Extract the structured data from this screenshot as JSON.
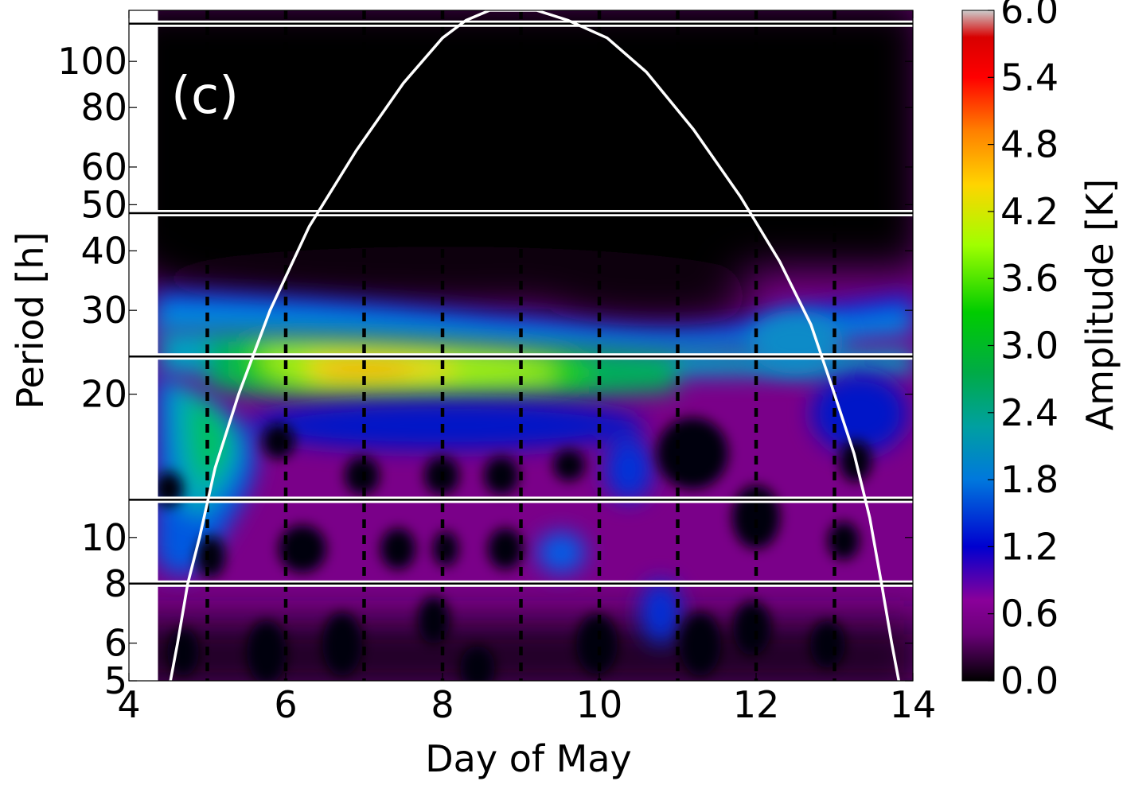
{
  "chart_data": {
    "type": "heatmap",
    "panel_label": "(c)",
    "xlabel": "Day of May",
    "ylabel": "Period [h]",
    "xlim": [
      4,
      14
    ],
    "ylim": [
      5,
      128
    ],
    "y_scale": "log",
    "x_ticks": [
      4,
      6,
      8,
      10,
      12,
      14
    ],
    "y_ticks": [
      5,
      6,
      8,
      10,
      20,
      30,
      40,
      50,
      60,
      80,
      100
    ],
    "data_start_day": 4.37,
    "day_marker_lines": [
      5,
      6,
      7,
      8,
      9,
      10,
      11,
      12,
      13
    ],
    "period_band_boundaries": [
      8,
      12,
      24,
      48,
      120
    ],
    "cone_of_influence": {
      "x": [
        4.53,
        4.62,
        4.75,
        4.9,
        5.1,
        5.4,
        5.8,
        6.3,
        6.9,
        7.5,
        8.0,
        8.3,
        8.6,
        8.9,
        9.2,
        9.6,
        10.1,
        10.6,
        11.2,
        11.8,
        12.3,
        12.7,
        13.0,
        13.25,
        13.45,
        13.6,
        13.73,
        13.82
      ],
      "y": [
        5,
        6,
        8,
        10,
        14,
        20,
        30,
        45,
        65,
        90,
        112,
        122,
        128,
        128,
        128,
        122,
        112,
        95,
        72,
        52,
        38,
        28,
        20,
        15,
        11,
        8,
        6,
        5
      ]
    },
    "amplitude_regions": [
      {
        "x": 7.0,
        "period": 22.5,
        "amplitude": 4.6
      },
      {
        "x": 7.8,
        "period": 22.3,
        "amplitude": 4.2
      },
      {
        "x": 6.3,
        "period": 22.8,
        "amplitude": 3.4
      },
      {
        "x": 8.8,
        "period": 22.0,
        "amplitude": 3.5
      },
      {
        "x": 9.6,
        "period": 21.8,
        "amplitude": 2.7
      },
      {
        "x": 6.4,
        "period": 25.8,
        "amplitude": 3.0
      },
      {
        "x": 7.8,
        "period": 25.5,
        "amplitude": 2.6
      },
      {
        "x": 5.7,
        "period": 20.0,
        "amplitude": 2.6
      },
      {
        "x": 5.5,
        "period": 14.5,
        "amplitude": 2.0
      },
      {
        "x": 12.6,
        "period": 22.0,
        "amplitude": 1.9
      },
      {
        "x": 4.6,
        "period": 30.0,
        "amplitude": 1.8
      },
      {
        "x": 13.7,
        "period": 29.0,
        "amplitude": 1.6
      },
      {
        "x": 9.6,
        "period": 9.5,
        "amplitude": 1.3
      }
    ],
    "colorbar": {
      "label": "Amplitude [K]",
      "ticks": [
        "0.0",
        "0.6",
        "1.2",
        "1.8",
        "2.4",
        "3.0",
        "3.6",
        "4.2",
        "4.8",
        "5.4",
        "6.0"
      ],
      "min": 0.0,
      "max": 6.0,
      "colormap": "nipy_spectral",
      "colors": [
        "#000000",
        "#7a0089",
        "#8a009a",
        "#0000d0",
        "#0078dd",
        "#00a0a0",
        "#00ab46",
        "#00cc00",
        "#a0ff00",
        "#ffd400",
        "#ff8000",
        "#ff0000",
        "#d80000",
        "#cccccc"
      ]
    }
  }
}
